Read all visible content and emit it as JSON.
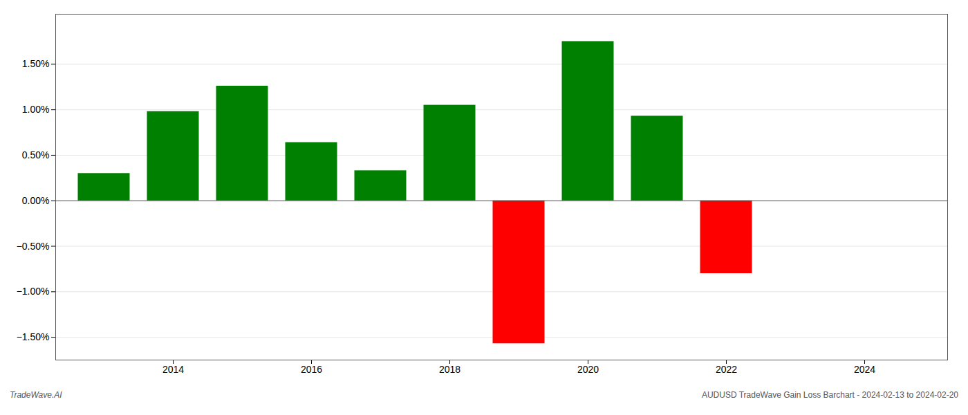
{
  "chart_data": {
    "type": "bar",
    "x": [
      2013,
      2014,
      2015,
      2016,
      2017,
      2018,
      2019,
      2020,
      2021,
      2022,
      2023
    ],
    "values": [
      0.3,
      0.98,
      1.26,
      0.64,
      0.33,
      1.05,
      -1.57,
      1.75,
      0.93,
      -0.8,
      0.0
    ],
    "colors": [
      "#008000",
      "#008000",
      "#008000",
      "#008000",
      "#008000",
      "#008000",
      "#ff0000",
      "#008000",
      "#008000",
      "#ff0000",
      "#008000"
    ],
    "xlim": [
      2012.3,
      2025.2
    ],
    "xticks": [
      2014,
      2016,
      2018,
      2020,
      2022,
      2024
    ],
    "ylim": [
      -1.75,
      2.05
    ],
    "yticks": [
      {
        "value": -1.5,
        "label": "−1.50%"
      },
      {
        "value": -1.0,
        "label": "−1.00%"
      },
      {
        "value": -0.5,
        "label": "−0.50%"
      },
      {
        "value": 0.0,
        "label": "0.00%"
      },
      {
        "value": 0.5,
        "label": "0.50%"
      },
      {
        "value": 1.0,
        "label": "1.00%"
      },
      {
        "value": 1.5,
        "label": "1.50%"
      }
    ],
    "grid": true,
    "annotations": [
      "TradeWave.AI",
      "AUDUSD TradeWave Gain Loss Barchart - 2024-02-13 to 2024-02-20"
    ]
  }
}
